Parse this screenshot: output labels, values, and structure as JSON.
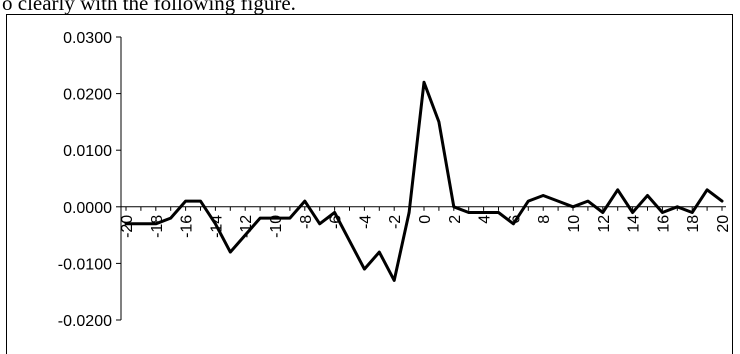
{
  "caption": "o clearly with the following figure.",
  "chart_data": {
    "type": "line",
    "title": "",
    "xlabel": "",
    "ylabel": "",
    "xlim": [
      -20,
      20
    ],
    "ylim": [
      -0.02,
      0.03
    ],
    "grid": false,
    "yticks": [
      "0.0300",
      "0.0200",
      "0.0100",
      "0.0000",
      "-0.0100",
      "-0.0200"
    ],
    "ytick_values": [
      0.03,
      0.02,
      0.01,
      0.0,
      -0.01,
      -0.02
    ],
    "xticks": [
      "-20",
      "-18",
      "-16",
      "-14",
      "-12",
      "-10",
      "-8",
      "-6",
      "-4",
      "-2",
      "0",
      "2",
      "4",
      "6",
      "8",
      "10",
      "12",
      "14",
      "16",
      "18",
      "20"
    ],
    "xtick_values": [
      -20,
      -18,
      -16,
      -14,
      -12,
      -10,
      -8,
      -6,
      -4,
      -2,
      0,
      2,
      4,
      6,
      8,
      10,
      12,
      14,
      16,
      18,
      20
    ],
    "series": [
      {
        "x": [
          -20,
          -19,
          -18,
          -17,
          -16,
          -15,
          -14,
          -13,
          -12,
          -11,
          -10,
          -9,
          -8,
          -7,
          -6,
          -5,
          -4,
          -3,
          -2,
          -1,
          0,
          1,
          2,
          3,
          4,
          5,
          6,
          7,
          8,
          9,
          10,
          11,
          12,
          13,
          14,
          15,
          16,
          17,
          18,
          19,
          20
        ],
        "values": [
          -0.003,
          -0.003,
          -0.003,
          -0.002,
          0.001,
          0.001,
          -0.003,
          -0.008,
          -0.005,
          -0.002,
          -0.002,
          -0.002,
          0.001,
          -0.003,
          -0.001,
          -0.006,
          -0.011,
          -0.008,
          -0.013,
          -0.001,
          0.022,
          0.015,
          0.0,
          -0.001,
          -0.001,
          -0.001,
          -0.003,
          0.001,
          0.002,
          0.001,
          0.0,
          0.001,
          -0.001,
          0.003,
          -0.001,
          0.002,
          -0.001,
          0.0,
          -0.001,
          0.003,
          0.001
        ],
        "color": "#000000"
      }
    ]
  }
}
